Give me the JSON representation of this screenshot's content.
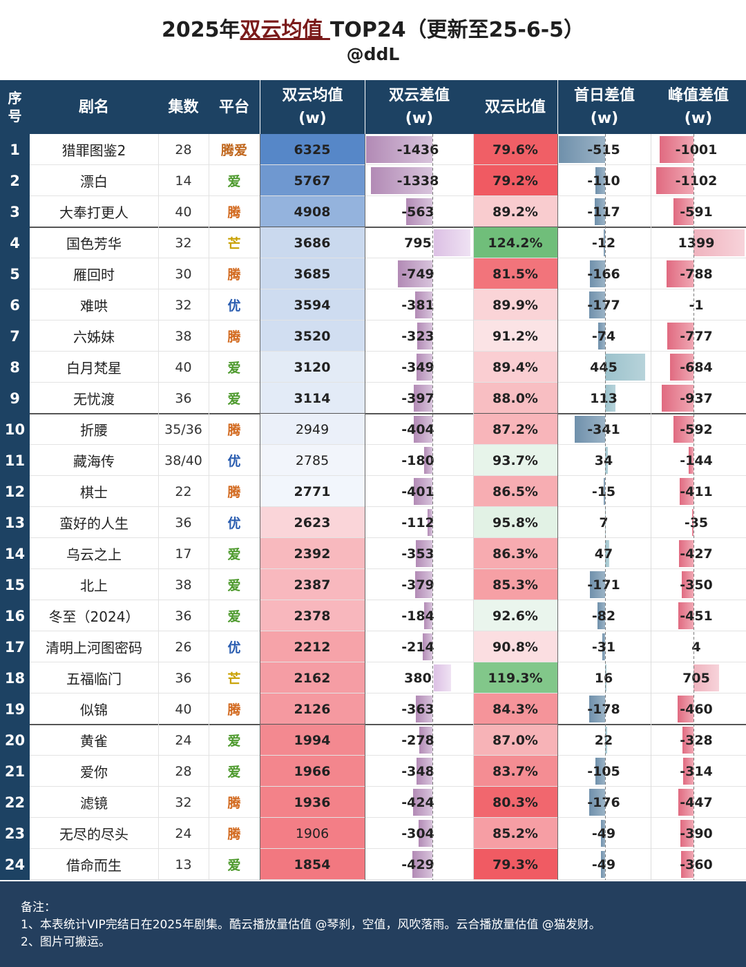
{
  "title": {
    "prefix": "2025年",
    "highlight": "双云均值 ",
    "suffix": "TOP24（更新至25-6-5）",
    "subtitle": "@ddL"
  },
  "headers": {
    "rank": "序号",
    "name": "剧名",
    "episodes": "集数",
    "platform": "平台",
    "avg": "双云均值\n(w)",
    "diff": "双云差值\n(w)",
    "ratio": "双云比值",
    "first_day_diff": "首日差值\n(w)",
    "peak_diff": "峰值差值\n(w)"
  },
  "platform_colors": {
    "腾爱": "#c0661c",
    "爱": "#4e9a2e",
    "腾": "#d2691e",
    "芒": "#c8a000",
    "优": "#2a5db0"
  },
  "rows": [
    {
      "rank": "1",
      "name": "猎罪图鉴2",
      "episodes": "28",
      "platform": "腾爱",
      "avg": "6325",
      "diff": "-1436",
      "ratio": "79.6%",
      "first": "-515",
      "peak": "-1001"
    },
    {
      "rank": "2",
      "name": "漂白",
      "episodes": "14",
      "platform": "爱",
      "avg": "5767",
      "diff": "-1338",
      "ratio": "79.2%",
      "first": "-110",
      "peak": "-1102"
    },
    {
      "rank": "3",
      "name": "大奉打更人",
      "episodes": "40",
      "platform": "腾",
      "avg": "4908",
      "diff": "-563",
      "ratio": "89.2%",
      "first": "-117",
      "peak": "-591"
    },
    {
      "rank": "4",
      "name": "国色芳华",
      "episodes": "32",
      "platform": "芒",
      "avg": "3686",
      "diff": "795",
      "ratio": "124.2%",
      "first": "-12",
      "peak": "1399"
    },
    {
      "rank": "5",
      "name": "雁回时",
      "episodes": "30",
      "platform": "腾",
      "avg": "3685",
      "diff": "-749",
      "ratio": "81.5%",
      "first": "-166",
      "peak": "-788"
    },
    {
      "rank": "6",
      "name": "难哄",
      "episodes": "32",
      "platform": "优",
      "avg": "3594",
      "diff": "-381",
      "ratio": "89.9%",
      "first": "-177",
      "peak": "-1"
    },
    {
      "rank": "7",
      "name": "六姊妹",
      "episodes": "38",
      "platform": "腾",
      "avg": "3520",
      "diff": "-323",
      "ratio": "91.2%",
      "first": "-74",
      "peak": "-777"
    },
    {
      "rank": "8",
      "name": "白月梵星",
      "episodes": "40",
      "platform": "爱",
      "avg": "3120",
      "diff": "-349",
      "ratio": "89.4%",
      "first": "445",
      "peak": "-684"
    },
    {
      "rank": "9",
      "name": "无忧渡",
      "episodes": "36",
      "platform": "爱",
      "avg": "3114",
      "diff": "-397",
      "ratio": "88.0%",
      "first": "113",
      "peak": "-937"
    },
    {
      "rank": "10",
      "name": "折腰",
      "episodes": "35/36",
      "platform": "腾",
      "avg": "2949",
      "diff": "-404",
      "ratio": "87.2%",
      "first": "-341",
      "peak": "-592"
    },
    {
      "rank": "11",
      "name": "藏海传",
      "episodes": "38/40",
      "platform": "优",
      "avg": "2785",
      "diff": "-180",
      "ratio": "93.7%",
      "first": "34",
      "peak": "-144"
    },
    {
      "rank": "12",
      "name": "棋士",
      "episodes": "22",
      "platform": "腾",
      "avg": "2771",
      "diff": "-401",
      "ratio": "86.5%",
      "first": "-15",
      "peak": "-411"
    },
    {
      "rank": "13",
      "name": "蛮好的人生",
      "episodes": "36",
      "platform": "优",
      "avg": "2623",
      "diff": "-112",
      "ratio": "95.8%",
      "first": "7",
      "peak": "-35"
    },
    {
      "rank": "14",
      "name": "乌云之上",
      "episodes": "17",
      "platform": "爱",
      "avg": "2392",
      "diff": "-353",
      "ratio": "86.3%",
      "first": "47",
      "peak": "-427"
    },
    {
      "rank": "15",
      "name": "北上",
      "episodes": "38",
      "platform": "爱",
      "avg": "2387",
      "diff": "-379",
      "ratio": "85.3%",
      "first": "-171",
      "peak": "-350"
    },
    {
      "rank": "16",
      "name": "冬至（2024）",
      "episodes": "36",
      "platform": "爱",
      "avg": "2378",
      "diff": "-184",
      "ratio": "92.6%",
      "first": "-82",
      "peak": "-451"
    },
    {
      "rank": "17",
      "name": "清明上河图密码",
      "episodes": "26",
      "platform": "优",
      "avg": "2212",
      "diff": "-214",
      "ratio": "90.8%",
      "first": "-31",
      "peak": "4"
    },
    {
      "rank": "18",
      "name": "五福临门",
      "episodes": "36",
      "platform": "芒",
      "avg": "2162",
      "diff": "380",
      "ratio": "119.3%",
      "first": "16",
      "peak": "705"
    },
    {
      "rank": "19",
      "name": "似锦",
      "episodes": "40",
      "platform": "腾",
      "avg": "2126",
      "diff": "-363",
      "ratio": "84.3%",
      "first": "-178",
      "peak": "-460"
    },
    {
      "rank": "20",
      "name": "黄雀",
      "episodes": "24",
      "platform": "爱",
      "avg": "1994",
      "diff": "-278",
      "ratio": "87.0%",
      "first": "22",
      "peak": "-328"
    },
    {
      "rank": "21",
      "name": "爱你",
      "episodes": "28",
      "platform": "爱",
      "avg": "1966",
      "diff": "-348",
      "ratio": "83.7%",
      "first": "-105",
      "peak": "-314"
    },
    {
      "rank": "22",
      "name": "滤镜",
      "episodes": "32",
      "platform": "腾",
      "avg": "1936",
      "diff": "-424",
      "ratio": "80.3%",
      "first": "-176",
      "peak": "-447"
    },
    {
      "rank": "23",
      "name": "无尽的尽头",
      "episodes": "24",
      "platform": "腾",
      "avg": "1906",
      "diff": "-304",
      "ratio": "85.2%",
      "first": "-49",
      "peak": "-390"
    },
    {
      "rank": "24",
      "name": "借命而生",
      "episodes": "13",
      "platform": "爱",
      "avg": "1854",
      "diff": "-429",
      "ratio": "79.3%",
      "first": "-49",
      "peak": "-360"
    }
  ],
  "notes": {
    "heading": "备注：",
    "line1": "1、本表统计VIP完结日在2025年剧集。酷云播放量估值 @琴刹，空值，风吹落雨。云合播放量估值 @猫发财。",
    "line2": "2、图片可搬运。"
  }
}
